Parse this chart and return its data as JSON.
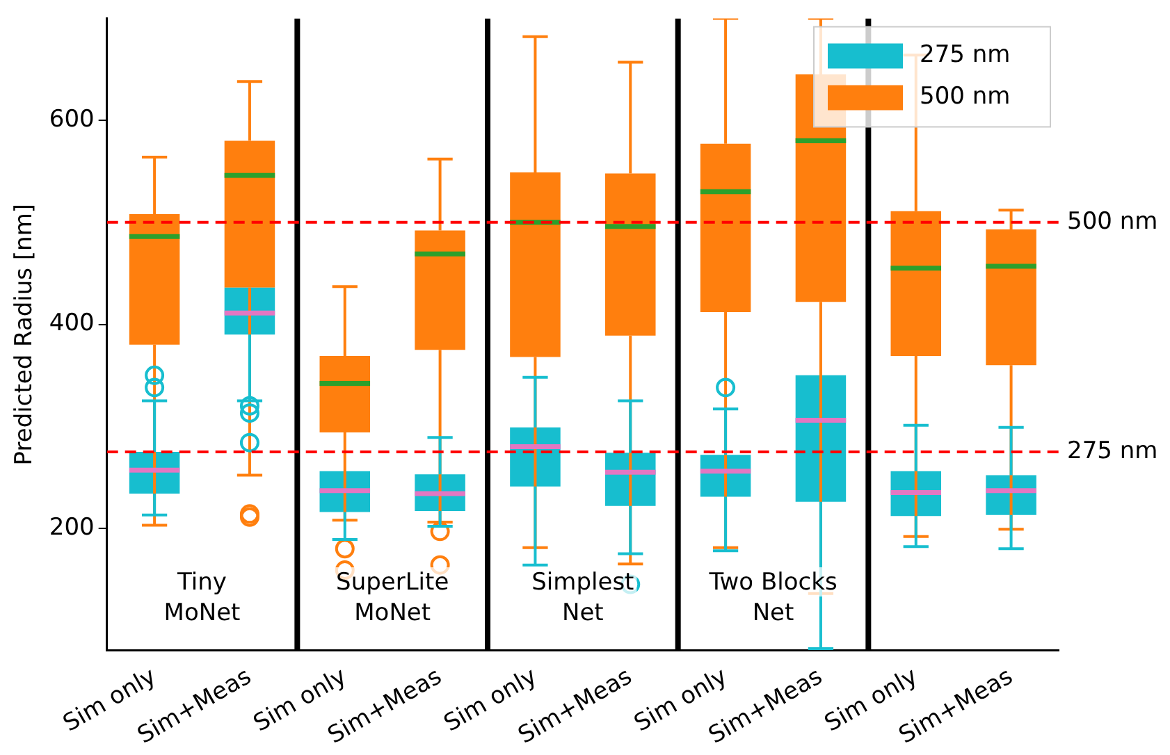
{
  "chart_data": {
    "type": "box",
    "ylabel": "Predicted Radius [nm]",
    "categories": [
      "Sim only",
      "Sim+Meas",
      "Sim only",
      "Sim+Meas",
      "Sim only",
      "Sim+Meas",
      "Sim only",
      "Sim+Meas",
      "Sim only",
      "Sim+Meas"
    ],
    "series": [
      {
        "name": "275 nm",
        "color": "#17becf",
        "boxes": [
          {
            "low": 213,
            "q1": 234,
            "median": 257,
            "q3": 275,
            "high": 325,
            "outliers": [
              350,
              338
            ]
          },
          {
            "low": 325,
            "q1": 390,
            "median": 411,
            "q3": 436,
            "high": 436,
            "outliers": [
              320,
              313,
              284
            ]
          },
          {
            "low": 189,
            "q1": 216,
            "median": 237,
            "q3": 256,
            "high": 256
          },
          {
            "low": 202,
            "q1": 217,
            "median": 234,
            "q3": 253,
            "high": 289
          },
          {
            "low": 164,
            "q1": 241,
            "median": 280,
            "q3": 299,
            "high": 348
          },
          {
            "low": 175,
            "q1": 222,
            "median": 255,
            "q3": 274,
            "high": 325,
            "outliers": [
              145
            ]
          },
          {
            "low": 178,
            "q1": 231,
            "median": 256,
            "q3": 272,
            "high": 317,
            "outliers": [
              338
            ]
          },
          {
            "low": 82,
            "q1": 226,
            "median": 306,
            "q3": 350,
            "high": 350
          },
          {
            "low": 182,
            "q1": 212,
            "median": 235,
            "q3": 256,
            "high": 301
          },
          {
            "low": 180,
            "q1": 213,
            "median": 237,
            "q3": 252,
            "high": 299
          }
        ]
      },
      {
        "name": "500 nm",
        "color": "#ff7f0e",
        "boxes": [
          {
            "low": 203,
            "q1": 380,
            "median": 486,
            "q3": 508,
            "high": 564
          },
          {
            "low": 252,
            "q1": 436,
            "median": 546,
            "q3": 580,
            "high": 638,
            "outliers": [
              214,
              211
            ]
          },
          {
            "low": 208,
            "q1": 294,
            "median": 342,
            "q3": 369,
            "high": 437,
            "outliers": [
              180,
              159
            ]
          },
          {
            "low": 206,
            "q1": 375,
            "median": 469,
            "q3": 492,
            "high": 562,
            "outliers": [
              197,
              164
            ]
          },
          {
            "low": 181,
            "q1": 368,
            "median": 500,
            "q3": 549,
            "high": 682
          },
          {
            "low": 165,
            "q1": 389,
            "median": 496,
            "q3": 548,
            "high": 657
          },
          {
            "low": 181,
            "q1": 412,
            "median": 530,
            "q3": 577,
            "high": 700
          },
          {
            "low": 136,
            "q1": 422,
            "median": 580,
            "q3": 645,
            "high": 700
          },
          {
            "low": 192,
            "q1": 369,
            "median": 455,
            "q3": 511,
            "high": 664
          },
          {
            "low": 199,
            "q1": 360,
            "median": 457,
            "q3": 493,
            "high": 512
          }
        ]
      }
    ],
    "ylim": [
      80,
      700
    ],
    "yticks": [
      200,
      400,
      600
    ],
    "ref_lines": [
      {
        "axis": "y",
        "value": 500,
        "label": "500 nm",
        "color": "#ff0000",
        "line_style": "dashed"
      },
      {
        "axis": "y",
        "value": 275,
        "label": "275 nm",
        "color": "#ff0000",
        "line_style": "dashed"
      }
    ],
    "annotations": [
      "Tiny\nMoNet",
      "SuperLite\nMoNet",
      "Simplest\nNet",
      "Two Blocks\nNet"
    ],
    "legend": "top right",
    "grid": false
  }
}
